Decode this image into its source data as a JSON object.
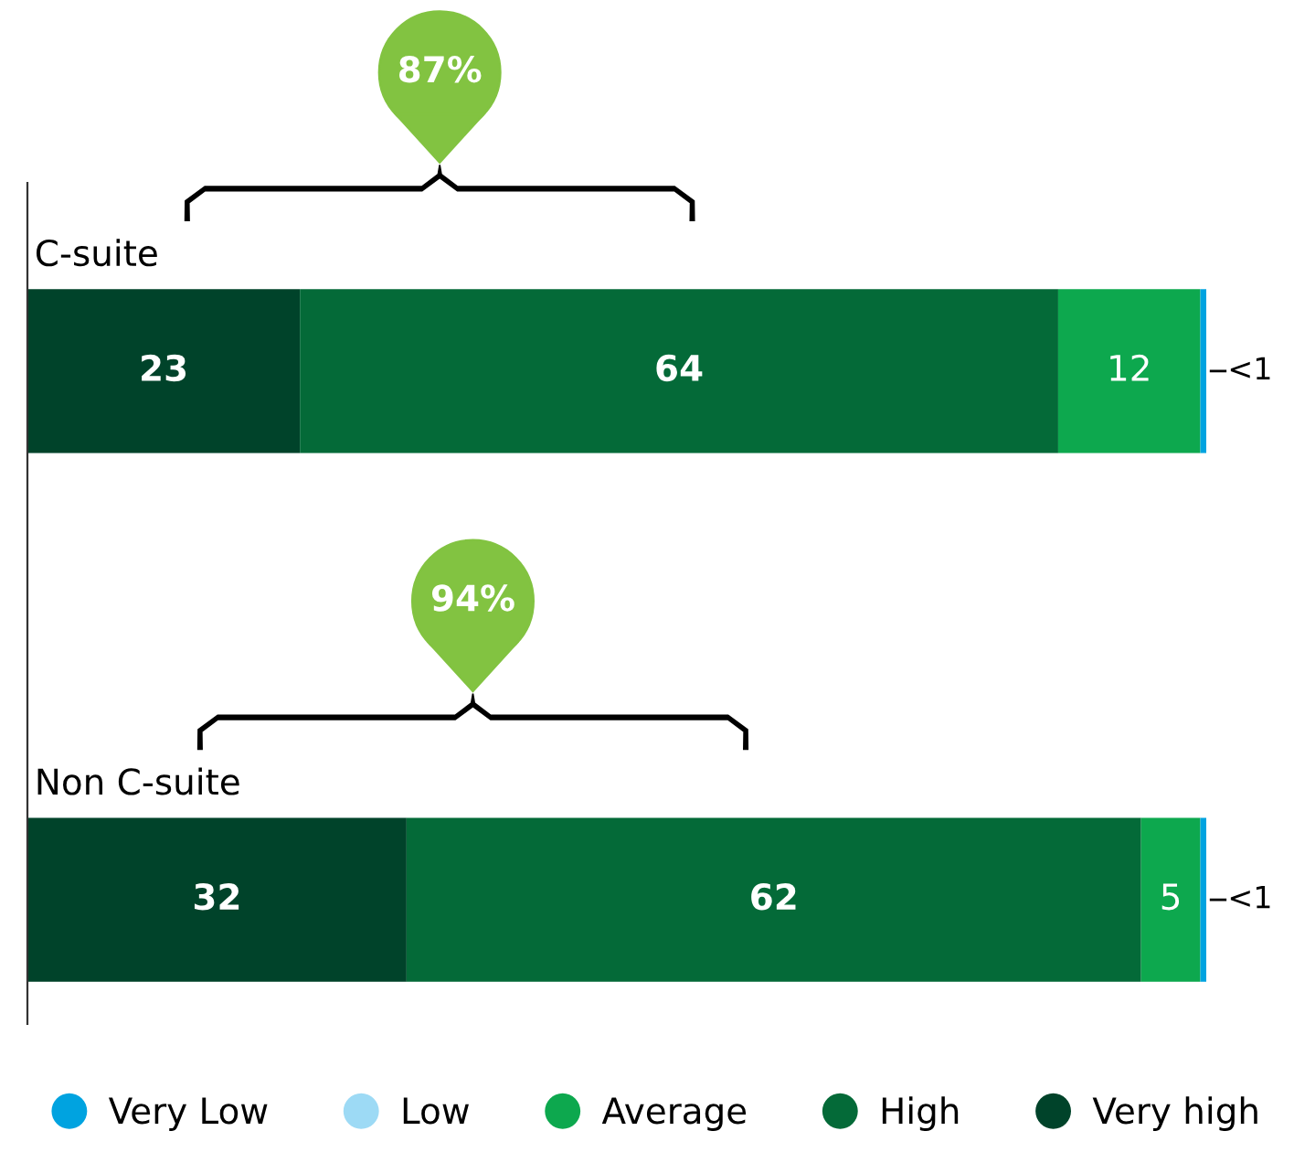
{
  "chart_data": {
    "type": "bar",
    "orientation": "horizontal",
    "stacked": true,
    "categories": [
      "C-suite",
      "Non C-suite"
    ],
    "series": [
      {
        "name": "Very high",
        "color": "#00432a",
        "values": [
          23,
          32
        ],
        "value_labels": [
          "23",
          "32"
        ]
      },
      {
        "name": "High",
        "color": "#046a38",
        "values": [
          64,
          62
        ],
        "value_labels": [
          "64",
          "62"
        ]
      },
      {
        "name": "Average",
        "color": "#0da84e",
        "values": [
          12,
          5
        ],
        "value_labels": [
          "12",
          "5"
        ]
      },
      {
        "name": "Low",
        "color": "#9ddaf5",
        "values": [
          null,
          null
        ]
      },
      {
        "name": "Very Low",
        "color": "#00a3e0",
        "values": [
          0.5,
          0.5
        ],
        "value_labels": [
          "<1",
          "<1"
        ]
      }
    ],
    "annotations": [
      "87%",
      "94%"
    ],
    "legend": "bottom"
  }
}
